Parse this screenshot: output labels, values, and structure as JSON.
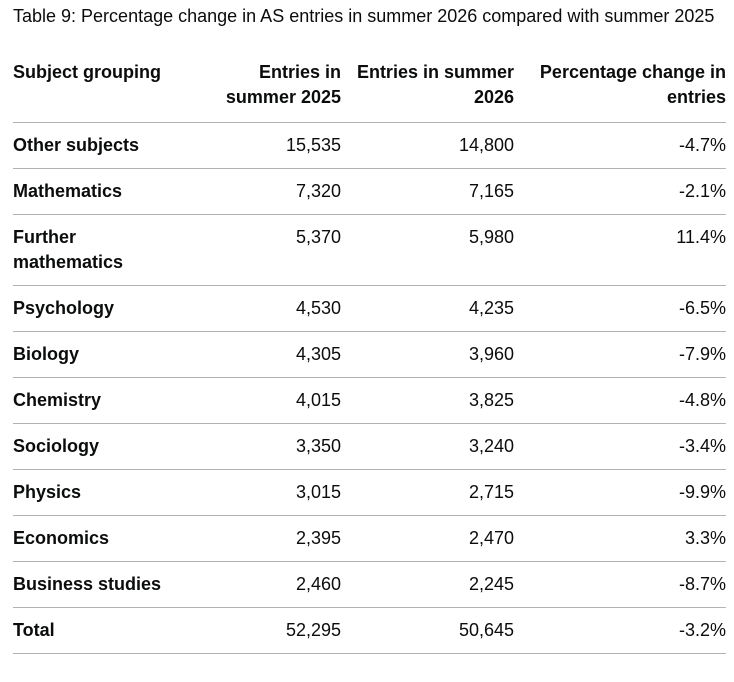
{
  "caption": "Table 9: Percentage change in AS entries in summer 2026 compared with summer 2025",
  "headers": {
    "subject": "Subject grouping",
    "entries_2025": "Entries in summer 2025",
    "entries_2026": "Entries in summer 2026",
    "pct_change": "Percentage change in entries"
  },
  "rows": [
    {
      "subject": "Other subjects",
      "entries_2025": "15,535",
      "entries_2026": "14,800",
      "pct_change": "-4.7%"
    },
    {
      "subject": "Mathematics",
      "entries_2025": "7,320",
      "entries_2026": "7,165",
      "pct_change": "-2.1%"
    },
    {
      "subject": "Further mathematics",
      "entries_2025": "5,370",
      "entries_2026": "5,980",
      "pct_change": "11.4%"
    },
    {
      "subject": "Psychology",
      "entries_2025": "4,530",
      "entries_2026": "4,235",
      "pct_change": "-6.5%"
    },
    {
      "subject": "Biology",
      "entries_2025": "4,305",
      "entries_2026": "3,960",
      "pct_change": "-7.9%"
    },
    {
      "subject": "Chemistry",
      "entries_2025": "4,015",
      "entries_2026": "3,825",
      "pct_change": "-4.8%"
    },
    {
      "subject": "Sociology",
      "entries_2025": "3,350",
      "entries_2026": "3,240",
      "pct_change": "-3.4%"
    },
    {
      "subject": "Physics",
      "entries_2025": "3,015",
      "entries_2026": "2,715",
      "pct_change": "-9.9%"
    },
    {
      "subject": "Economics",
      "entries_2025": "2,395",
      "entries_2026": "2,470",
      "pct_change": "3.3%"
    },
    {
      "subject": "Business studies",
      "entries_2025": "2,460",
      "entries_2026": "2,245",
      "pct_change": "-8.7%"
    },
    {
      "subject": "Total",
      "entries_2025": "52,295",
      "entries_2026": "50,645",
      "pct_change": "-3.2%"
    }
  ]
}
